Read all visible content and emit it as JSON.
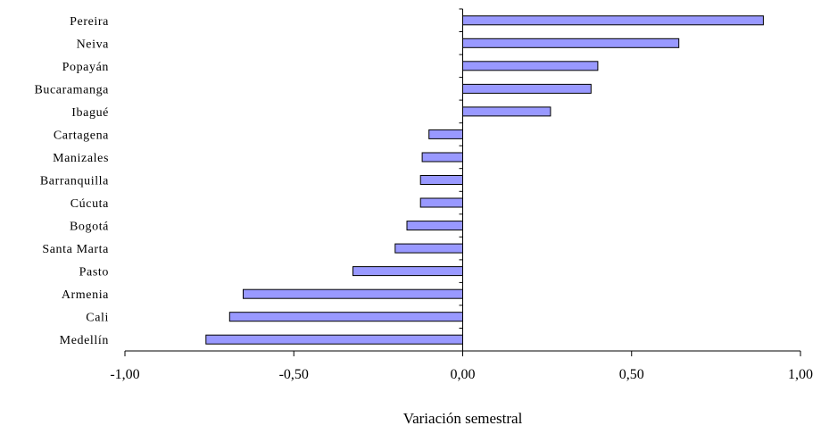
{
  "chart_data": {
    "type": "bar",
    "orientation": "horizontal",
    "categories": [
      "Pereira",
      "Neiva",
      "Popayán",
      "Bucaramanga",
      "Ibagué",
      "Cartagena",
      "Manizales",
      "Barranquilla",
      "Cúcuta",
      "Bogotá",
      "Santa Marta",
      "Pasto",
      "Armenia",
      "Cali",
      "Medellín"
    ],
    "values": [
      0.89,
      0.64,
      0.4,
      0.38,
      0.26,
      -0.1,
      -0.12,
      -0.125,
      -0.125,
      -0.165,
      -0.2,
      -0.325,
      -0.65,
      -0.69,
      -0.76
    ],
    "xlabel": "Variación semestral",
    "ylabel": "",
    "xlim": [
      -1.0,
      1.0
    ],
    "xticks": [
      "-1,00",
      "-0,50",
      "0,00",
      "0,50",
      "1,00"
    ],
    "bar_color": "#9999ff",
    "bar_edge_color": "#000000",
    "grid": false,
    "legend": "none"
  }
}
